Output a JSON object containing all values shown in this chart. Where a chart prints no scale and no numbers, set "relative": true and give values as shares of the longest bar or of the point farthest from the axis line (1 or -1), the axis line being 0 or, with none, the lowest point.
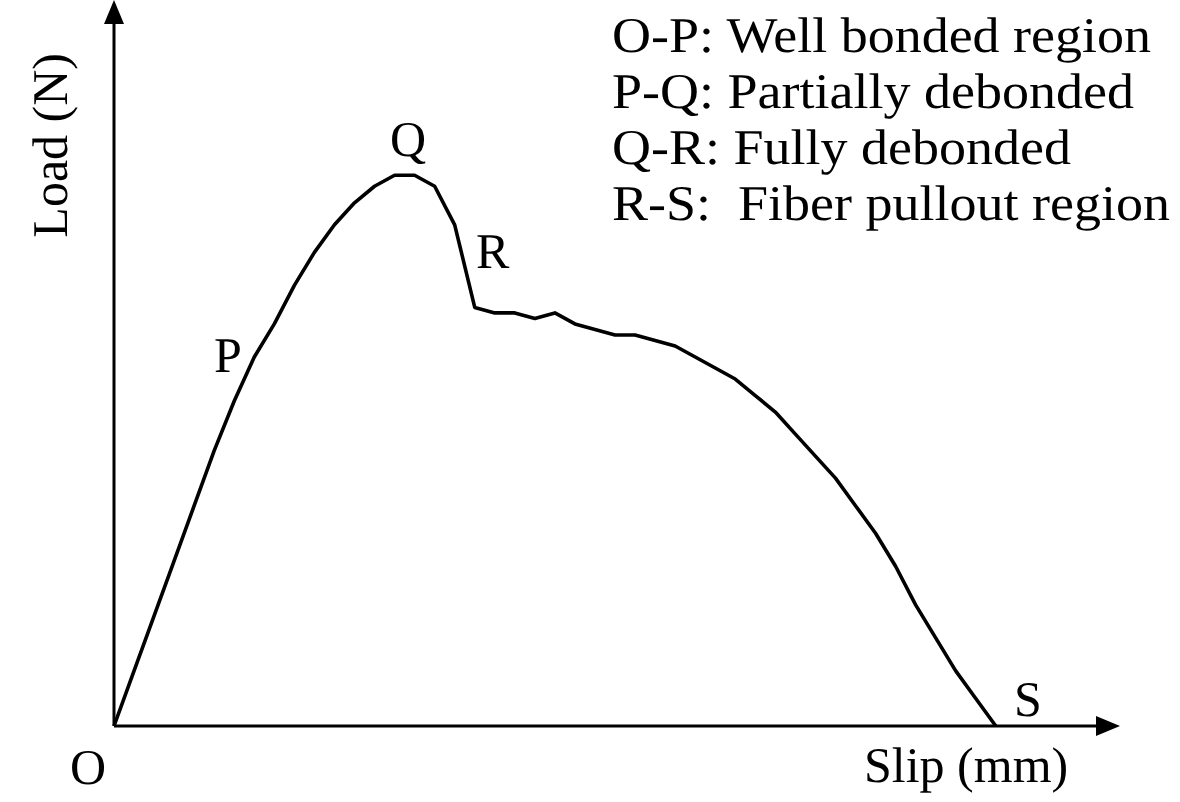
{
  "chart_data": {
    "type": "line",
    "relative": true,
    "xlabel": "Slip (mm)",
    "ylabel": "Load (N)",
    "color": "#000000",
    "marker": "none",
    "line_style": "solid",
    "categories": [
      null,
      null,
      null,
      null,
      null,
      null,
      null,
      null,
      null,
      null,
      null,
      null,
      null,
      null,
      null,
      null,
      null,
      null,
      null,
      null,
      null,
      null,
      null,
      null,
      null,
      null,
      null,
      null,
      null,
      null,
      null,
      null,
      null,
      null,
      null,
      null,
      null,
      null,
      null,
      null,
      null,
      null,
      null,
      null,
      null,
      null,
      null,
      null,
      null,
      null
    ],
    "values": [
      0,
      0.1,
      0.2,
      0.3,
      0.4,
      0.5,
      0.59,
      0.67,
      0.73,
      0.8,
      0.86,
      0.91,
      0.95,
      0.98,
      1,
      1,
      0.98,
      0.91,
      0.76,
      0.75,
      0.75,
      0.74,
      0.75,
      0.73,
      0.72,
      0.71,
      0.71,
      0.7,
      0.69,
      0.67,
      0.65,
      0.63,
      0.6,
      0.57,
      0.53,
      0.49,
      0.45,
      0.4,
      0.35,
      0.29,
      0.22,
      0.16,
      0.1,
      0.05,
      0,
      null,
      null,
      null,
      null,
      null
    ],
    "annotations": [
      "O",
      "P",
      "Q",
      "R",
      "S",
      "O-P: Well bonded region",
      "P-Q: Partially debonded",
      "Q-R: Fully debonded",
      "R-S:  Fiber pullout region"
    ]
  }
}
